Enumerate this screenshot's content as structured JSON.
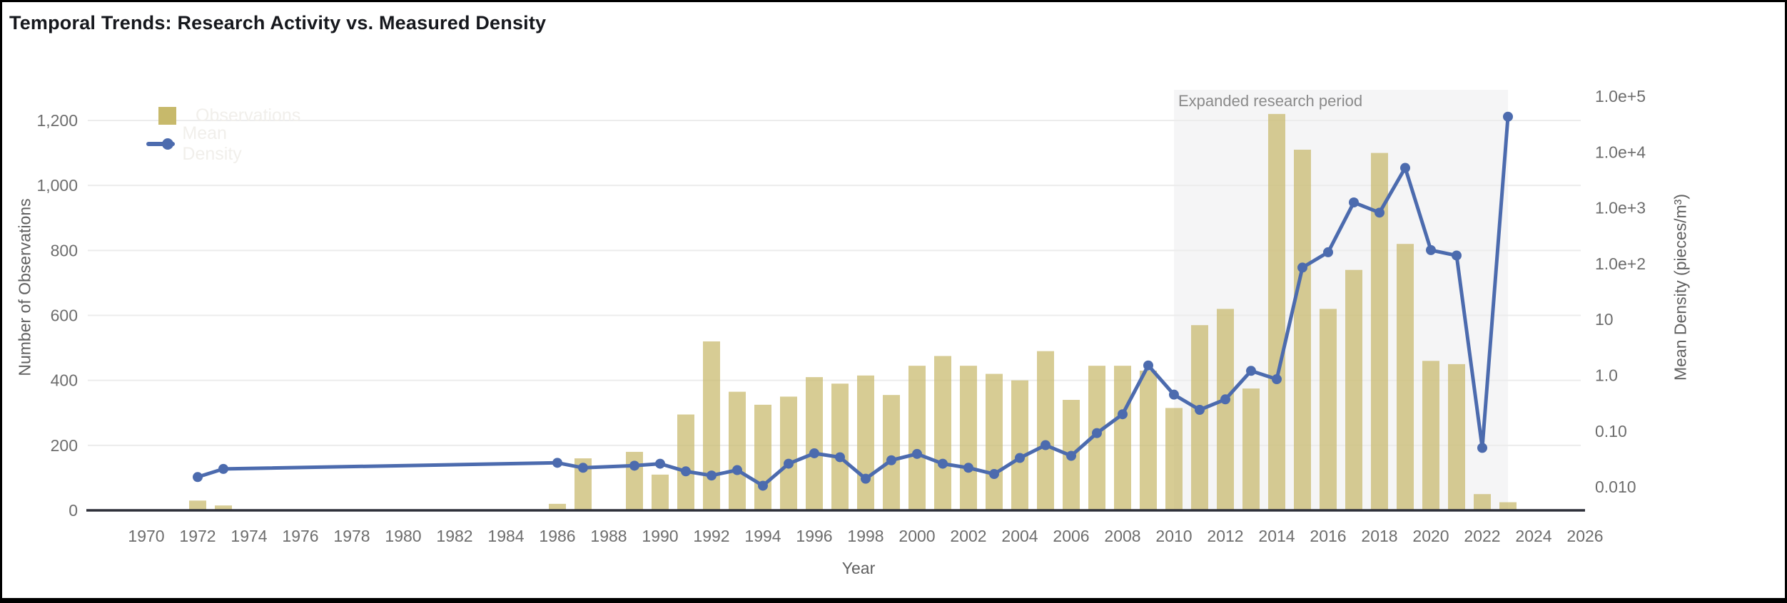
{
  "title": "Temporal Trends: Research Activity vs. Measured Density",
  "colors": {
    "bar": "#c7b96b",
    "bar_opacity": 0.72,
    "line": "#4c6bae",
    "grid": "#ececec",
    "axis_line": "#2d2f38",
    "tick_text": "#6d6d6d",
    "axis_title_text": "#5f5f5f",
    "title_text": "#16181d",
    "legend_text": "#f1efeb",
    "annotation_fill": "#f5f5f6",
    "annotation_text": "#8a8a8a",
    "background": "#ffffff"
  },
  "chart_data": {
    "type": "bar+line combo, dual y-axis (right axis log10)",
    "title": "Temporal Trends: Research Activity vs. Measured Density",
    "xlabel": "Year",
    "ylabel_left": "Number of Observations",
    "ylabel_right": "Mean Density (pieces/m³)",
    "x_domain": [
      1967.7,
      2026.3
    ],
    "x_ticks": [
      1970,
      1972,
      1974,
      1976,
      1978,
      1980,
      1982,
      1984,
      1986,
      1988,
      1990,
      1992,
      1994,
      1996,
      1998,
      2000,
      2002,
      2004,
      2006,
      2008,
      2010,
      2012,
      2014,
      2016,
      2018,
      2020,
      2022,
      2024,
      2026
    ],
    "ylim_left": [
      0,
      1320
    ],
    "y_ticks_left": [
      {
        "v": 0,
        "label": "0"
      },
      {
        "v": 200,
        "label": "200"
      },
      {
        "v": 400,
        "label": "400"
      },
      {
        "v": 600,
        "label": "600"
      },
      {
        "v": 800,
        "label": "800"
      },
      {
        "v": 1000,
        "label": "1,000"
      },
      {
        "v": 1200,
        "label": "1,200"
      }
    ],
    "y_axis_right_scale": "log",
    "ylim_right": [
      0.01,
      100000
    ],
    "y_ticks_right": [
      {
        "v": 0.01,
        "label": "0.010"
      },
      {
        "v": 0.1,
        "label": "0.10"
      },
      {
        "v": 1,
        "label": "1.0"
      },
      {
        "v": 10,
        "label": "10"
      },
      {
        "v": 100,
        "label": "1.0e+2"
      },
      {
        "v": 1000,
        "label": "1.0e+3"
      },
      {
        "v": 10000,
        "label": "1.0e+4"
      },
      {
        "v": 100000,
        "label": "1.0e+5"
      }
    ],
    "grid": "horizontal gridlines at left-axis ticks only",
    "legend_position": "top-left inside plot, labels rendered extremely faint",
    "annotation": {
      "label": "Expanded research period",
      "x_start": 2010,
      "x_end": 2023
    },
    "series": [
      {
        "name": "Observations",
        "type": "bar",
        "axis": "left",
        "points": [
          [
            1972,
            30
          ],
          [
            1973,
            15
          ],
          [
            1986,
            20
          ],
          [
            1987,
            160
          ],
          [
            1989,
            180
          ],
          [
            1990,
            110
          ],
          [
            1991,
            295
          ],
          [
            1992,
            520
          ],
          [
            1993,
            365
          ],
          [
            1994,
            325
          ],
          [
            1995,
            350
          ],
          [
            1996,
            410
          ],
          [
            1997,
            390
          ],
          [
            1998,
            415
          ],
          [
            1999,
            355
          ],
          [
            2000,
            445
          ],
          [
            2001,
            475
          ],
          [
            2002,
            445
          ],
          [
            2003,
            420
          ],
          [
            2004,
            400
          ],
          [
            2005,
            490
          ],
          [
            2006,
            340
          ],
          [
            2007,
            445
          ],
          [
            2008,
            445
          ],
          [
            2009,
            430
          ],
          [
            2010,
            315
          ],
          [
            2011,
            570
          ],
          [
            2012,
            620
          ],
          [
            2013,
            375
          ],
          [
            2014,
            1220
          ],
          [
            2015,
            1110
          ],
          [
            2016,
            620
          ],
          [
            2017,
            740
          ],
          [
            2018,
            1100
          ],
          [
            2019,
            820
          ],
          [
            2020,
            460
          ],
          [
            2021,
            450
          ],
          [
            2022,
            50
          ],
          [
            2023,
            25
          ]
        ]
      },
      {
        "name": "Mean Density",
        "type": "line",
        "axis": "right",
        "points": [
          [
            1972,
            0.015
          ],
          [
            1973,
            0.021
          ],
          [
            1986,
            0.027
          ],
          [
            1987,
            0.022
          ],
          [
            1989,
            0.024
          ],
          [
            1990,
            0.026
          ],
          [
            1991,
            0.019
          ],
          [
            1992,
            0.016
          ],
          [
            1993,
            0.02
          ],
          [
            1994,
            0.0105
          ],
          [
            1995,
            0.026
          ],
          [
            1996,
            0.04
          ],
          [
            1997,
            0.034
          ],
          [
            1998,
            0.014
          ],
          [
            1999,
            0.03
          ],
          [
            2000,
            0.039
          ],
          [
            2001,
            0.026
          ],
          [
            2002,
            0.022
          ],
          [
            2003,
            0.017
          ],
          [
            2004,
            0.033
          ],
          [
            2005,
            0.056
          ],
          [
            2006,
            0.036
          ],
          [
            2007,
            0.092
          ],
          [
            2008,
            0.2
          ],
          [
            2009,
            1.5
          ],
          [
            2010,
            0.45
          ],
          [
            2011,
            0.24
          ],
          [
            2012,
            0.37
          ],
          [
            2013,
            1.2
          ],
          [
            2014,
            0.85
          ],
          [
            2015,
            85
          ],
          [
            2016,
            160
          ],
          [
            2017,
            1250
          ],
          [
            2018,
            820
          ],
          [
            2019,
            5200
          ],
          [
            2020,
            175
          ],
          [
            2021,
            140
          ],
          [
            2022,
            0.05
          ],
          [
            2023,
            43000
          ]
        ]
      }
    ]
  }
}
